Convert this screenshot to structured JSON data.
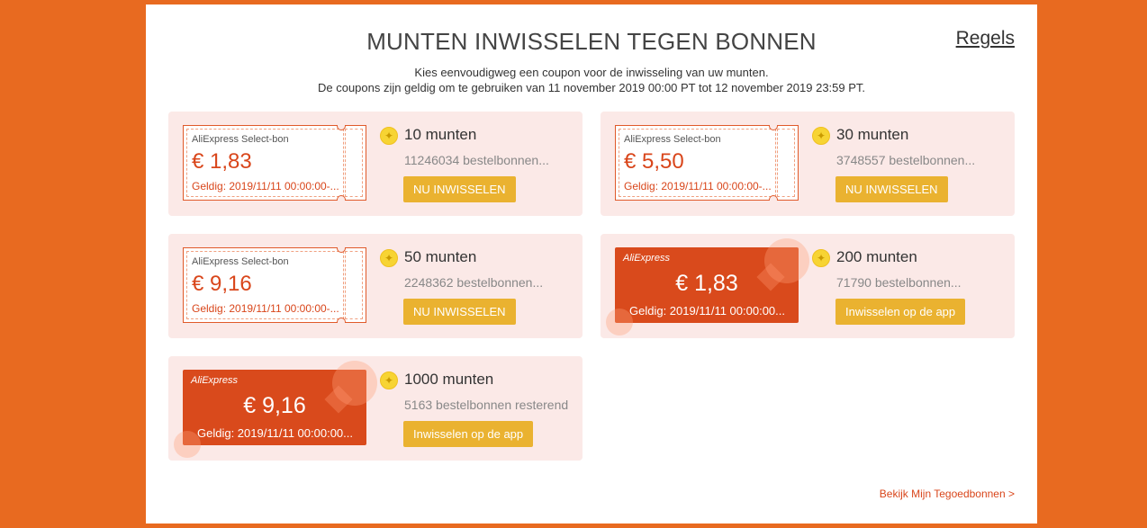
{
  "page": {
    "title": "MUNTEN INWISSELEN TEGEN BONNEN",
    "rules_link": "Regels",
    "subtitle_line1": "Kies eenvoudigweg een coupon voor de inwisseling van uw munten.",
    "subtitle_line2": "De coupons zijn geldig om te gebruiken van 11 november 2019 00:00 PT tot 12 november 2019 23:59 PT.",
    "footer_link": "Bekijk Mijn Tegoedbonnen >"
  },
  "colors": {
    "background": "#e86a20",
    "card": "#fbe9e7",
    "accent": "#d9461b",
    "button": "#eab230"
  },
  "coupons": [
    {
      "style": "outline",
      "brand": "AliExpress Select-bon",
      "amount": "€ 1,83",
      "valid": "Geldig: 2019/11/11 00:00:00-...",
      "coins": "10 munten",
      "remaining": "11246034 bestelbonnen...",
      "button": "NU INWISSELEN",
      "coin_icon": "coin-icon"
    },
    {
      "style": "outline",
      "brand": "AliExpress Select-bon",
      "amount": "€ 5,50",
      "valid": "Geldig: 2019/11/11 00:00:00-...",
      "coins": "30 munten",
      "remaining": "3748557 bestelbonnen...",
      "button": "NU INWISSELEN",
      "coin_icon": "coin-icon"
    },
    {
      "style": "outline",
      "brand": "AliExpress Select-bon",
      "amount": "€ 9,16",
      "valid": "Geldig: 2019/11/11 00:00:00-...",
      "coins": "50 munten",
      "remaining": "2248362 bestelbonnen...",
      "button": "NU INWISSELEN",
      "coin_icon": "coin-icon"
    },
    {
      "style": "solid",
      "brand": "AliExpress",
      "amount": "€ 1,83",
      "valid": "Geldig: 2019/11/11 00:00:00...",
      "coins": "200 munten",
      "remaining": "71790 bestelbonnen...",
      "button": "Inwisselen op de app",
      "coin_icon": "coin-icon"
    },
    {
      "style": "solid",
      "brand": "AliExpress",
      "amount": "€ 9,16",
      "valid": "Geldig: 2019/11/11 00:00:00...",
      "coins": "1000 munten",
      "remaining": "5163 bestelbonnen resterend",
      "button": "Inwisselen op de app",
      "coin_icon": "coin-icon"
    }
  ]
}
